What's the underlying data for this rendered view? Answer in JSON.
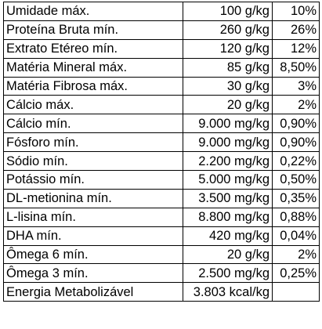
{
  "table": {
    "rows": [
      {
        "name": "Umidade máx.",
        "amount": "100 g/kg",
        "percent": "10%"
      },
      {
        "name": "Proteína Bruta mín.",
        "amount": "260 g/kg",
        "percent": "26%"
      },
      {
        "name": "Extrato Etéreo mín.",
        "amount": "120 g/kg",
        "percent": "12%"
      },
      {
        "name": "Matéria Mineral máx.",
        "amount": "85 g/kg",
        "percent": "8,50%"
      },
      {
        "name": "Matéria Fibrosa máx.",
        "amount": "30 g/kg",
        "percent": "3%"
      },
      {
        "name": "Cálcio máx.",
        "amount": "20 g/kg",
        "percent": "2%"
      },
      {
        "name": "Cálcio mín.",
        "amount": "9.000 mg/kg",
        "percent": "0,90%"
      },
      {
        "name": "Fósforo mín.",
        "amount": "9.000 mg/kg",
        "percent": "0,90%"
      },
      {
        "name": "Sódio mín.",
        "amount": "2.200 mg/kg",
        "percent": "0,22%"
      },
      {
        "name": "Potássio mín.",
        "amount": "5.000 mg/kg",
        "percent": "0,50%"
      },
      {
        "name": "DL-metionina mín.",
        "amount": "3.500 mg/kg",
        "percent": "0,35%"
      },
      {
        "name": "L-lisina mín.",
        "amount": "8.800 mg/kg",
        "percent": "0,88%"
      },
      {
        "name": "DHA mín.",
        "amount": "420 mg/kg",
        "percent": "0,04%"
      },
      {
        "name": "Ômega 6 mín.",
        "amount": "20 g/kg",
        "percent": "2%"
      },
      {
        "name": "Ômega 3 mín.",
        "amount": "2.500 mg/kg",
        "percent": "0,25%"
      },
      {
        "name": "Energia Metabolizável",
        "amount": "3.803 kcal/kg",
        "percent": ""
      }
    ]
  }
}
